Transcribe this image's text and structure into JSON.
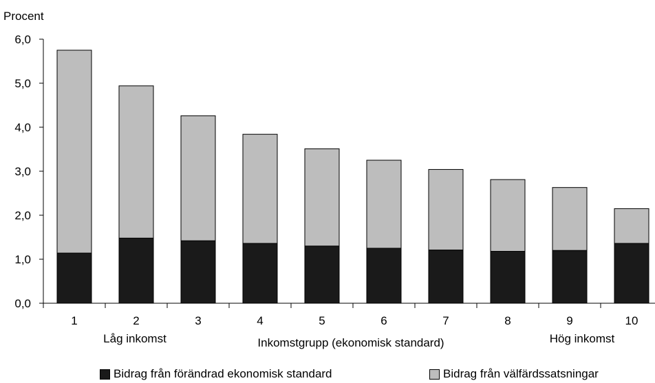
{
  "chart_data": {
    "type": "bar",
    "stacked": true,
    "ylabel": "Procent",
    "xlabel": "Inkomstgrupp (ekonomisk standard)",
    "x_left_annotation": "Låg inkomst",
    "x_right_annotation": "Hög inkomst",
    "categories": [
      "1",
      "2",
      "3",
      "4",
      "5",
      "6",
      "7",
      "8",
      "9",
      "10"
    ],
    "ylim": [
      0,
      6
    ],
    "yticks": [
      "0,0",
      "1,0",
      "2,0",
      "3,0",
      "4,0",
      "5,0",
      "6,0"
    ],
    "grid": false,
    "legend_position": "bottom",
    "series": [
      {
        "name": "Bidrag från förändrad ekonomisk standard",
        "color": "#1a1a1a",
        "values": [
          1.14,
          1.48,
          1.42,
          1.36,
          1.3,
          1.25,
          1.21,
          1.18,
          1.2,
          1.36
        ]
      },
      {
        "name": "Bidrag från välfärdssatsningar",
        "color": "#bdbdbd",
        "values": [
          4.61,
          3.46,
          2.84,
          2.48,
          2.21,
          2.0,
          1.83,
          1.63,
          1.43,
          0.79
        ]
      }
    ]
  }
}
